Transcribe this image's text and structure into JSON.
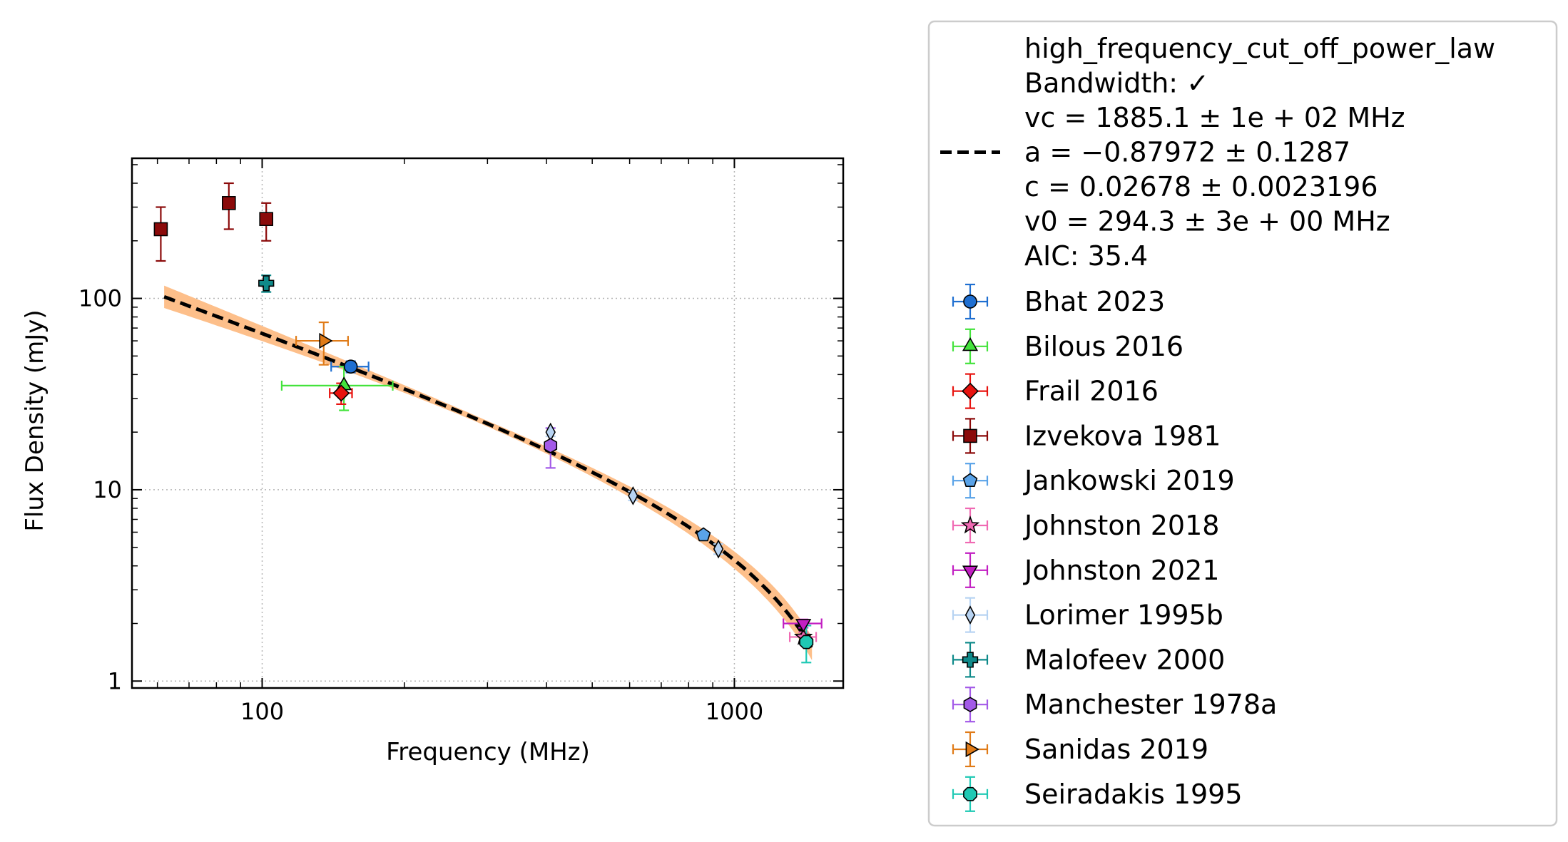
{
  "chart_data": {
    "type": "scatter",
    "x_scale": "log",
    "y_scale": "log",
    "xlabel": "Frequency (MHz)",
    "ylabel": "Flux Density (mJy)",
    "xlim": [
      53,
      1700
    ],
    "ylim": [
      0.92,
      540
    ],
    "grid": true,
    "legend_placement": "outside-right",
    "x_ticks": [
      {
        "value": 100,
        "label": "100"
      },
      {
        "value": 1000,
        "label": "1000"
      }
    ],
    "y_ticks": [
      {
        "value": 1,
        "label": "1"
      },
      {
        "value": 10,
        "label": "10"
      },
      {
        "value": 100,
        "label": "100"
      }
    ],
    "fit": {
      "model": "high_frequency_cut_off_power_law",
      "legend_lines": [
        "high_frequency_cut_off_power_law",
        "Bandwidth: ✓",
        "vc = 1885.1 ± 1e + 02 MHz",
        "a = −0.87972 ± 0.1287",
        "c = 0.02678 ± 0.0023196",
        "v0 = 294.3 ± 3e + 00 MHz",
        "AIC: 35.4"
      ],
      "vc": 1885.1,
      "a": -0.87972,
      "c": 0.02678,
      "v0": 294.3,
      "x_range": [
        62,
        1460
      ],
      "line_color": "#000000",
      "band_color": "#fdbf8a"
    },
    "series": [
      {
        "name": "Bhat 2023",
        "marker": "circle",
        "color": "#1f6fd1",
        "points": [
          {
            "x": 154,
            "y": 44,
            "xerr": [
              14,
              14
            ],
            "yerr": [
              3,
              3
            ]
          }
        ]
      },
      {
        "name": "Bilous 2016",
        "marker": "triangle-up",
        "color": "#44e33c",
        "points": [
          {
            "x": 149,
            "y": 35,
            "xerr": [
              39,
              40
            ],
            "yerr": [
              9,
              9
            ]
          }
        ]
      },
      {
        "name": "Frail 2016",
        "marker": "diamond",
        "color": "#e8130f",
        "points": [
          {
            "x": 147,
            "y": 32,
            "xerr": [
              8,
              8
            ],
            "yerr": [
              4,
              4
            ]
          }
        ]
      },
      {
        "name": "Izvekova 1981",
        "marker": "square",
        "color": "#8b0a0a",
        "points": [
          {
            "x": 61,
            "y": 230,
            "xerr": [
              0,
              0
            ],
            "yerr": [
              73,
              70
            ]
          },
          {
            "x": 85,
            "y": 315,
            "xerr": [
              0,
              0
            ],
            "yerr": [
              85,
              85
            ]
          },
          {
            "x": 102,
            "y": 260,
            "xerr": [
              0,
              0
            ],
            "yerr": [
              60,
              55
            ]
          }
        ]
      },
      {
        "name": "Jankowski 2019",
        "marker": "pentagon",
        "color": "#5aa3e8",
        "points": [
          {
            "x": 860,
            "y": 5.8,
            "xerr": [
              0,
              0
            ],
            "yerr": [
              0.2,
              0.2
            ]
          }
        ]
      },
      {
        "name": "Johnston 2018",
        "marker": "star",
        "color": "#f06ab3",
        "points": [
          {
            "x": 1400,
            "y": 1.7,
            "xerr": [
              90,
              90
            ],
            "yerr": [
              0.1,
              0.1
            ]
          }
        ]
      },
      {
        "name": "Johnston 2021",
        "marker": "triangle-down",
        "color": "#c21fc2",
        "points": [
          {
            "x": 1400,
            "y": 2.0,
            "xerr": [
              130,
              130
            ],
            "yerr": [
              0.1,
              0.1
            ]
          }
        ]
      },
      {
        "name": "Lorimer 1995b",
        "marker": "thin-diamond",
        "color": "#b7d3f2",
        "points": [
          {
            "x": 408,
            "y": 20,
            "xerr": [
              0,
              0
            ],
            "yerr": [
              1,
              1
            ]
          },
          {
            "x": 610,
            "y": 9.3,
            "xerr": [
              0,
              0
            ],
            "yerr": [
              0.5,
              0.5
            ]
          },
          {
            "x": 925,
            "y": 4.9,
            "xerr": [
              0,
              0
            ],
            "yerr": [
              0.3,
              0.3
            ]
          }
        ]
      },
      {
        "name": "Malofeev 2000",
        "marker": "plus",
        "color": "#0f8a8a",
        "points": [
          {
            "x": 102,
            "y": 120,
            "xerr": [
              0,
              0
            ],
            "yerr": [
              12,
              12
            ]
          }
        ]
      },
      {
        "name": "Manchester 1978a",
        "marker": "hexagon",
        "color": "#a35ae8",
        "points": [
          {
            "x": 408,
            "y": 17,
            "xerr": [
              0,
              0
            ],
            "yerr": [
              4,
              4
            ]
          }
        ]
      },
      {
        "name": "Sanidas 2019",
        "marker": "triangle-right",
        "color": "#e07b18",
        "points": [
          {
            "x": 135,
            "y": 60,
            "xerr": [
              17,
              17
            ],
            "yerr": [
              15,
              15
            ]
          }
        ]
      },
      {
        "name": "Seiradakis 1995",
        "marker": "octagon",
        "color": "#1fc9b4",
        "points": [
          {
            "x": 1420,
            "y": 1.6,
            "xerr": [
              0,
              0
            ],
            "yerr": [
              0.35,
              0.35
            ]
          }
        ]
      }
    ]
  }
}
